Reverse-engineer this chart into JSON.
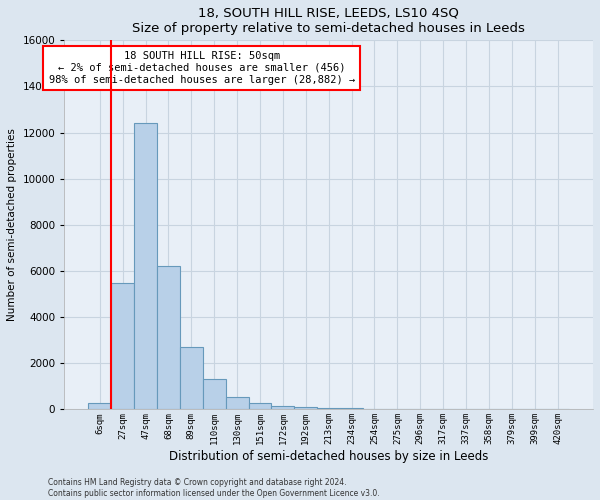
{
  "title": "18, SOUTH HILL RISE, LEEDS, LS10 4SQ",
  "subtitle": "Size of property relative to semi-detached houses in Leeds",
  "xlabel": "Distribution of semi-detached houses by size in Leeds",
  "ylabel": "Number of semi-detached properties",
  "bar_labels": [
    "6sqm",
    "27sqm",
    "47sqm",
    "68sqm",
    "89sqm",
    "110sqm",
    "130sqm",
    "151sqm",
    "172sqm",
    "192sqm",
    "213sqm",
    "234sqm",
    "254sqm",
    "275sqm",
    "296sqm",
    "317sqm",
    "337sqm",
    "358sqm",
    "379sqm",
    "399sqm",
    "420sqm"
  ],
  "bar_values": [
    300,
    5500,
    12400,
    6200,
    2700,
    1300,
    550,
    280,
    130,
    100,
    70,
    50,
    30,
    0,
    0,
    0,
    0,
    0,
    0,
    0,
    0
  ],
  "bar_color": "#b8d0e8",
  "bar_edge_color": "#6699bb",
  "vline_x": 0.5,
  "annotation_title": "18 SOUTH HILL RISE: 50sqm",
  "annotation_line1": "← 2% of semi-detached houses are smaller (456)",
  "annotation_line2": "98% of semi-detached houses are larger (28,882) →",
  "annotation_box_color": "white",
  "annotation_box_edge": "red",
  "vline_color": "red",
  "ylim": [
    0,
    16000
  ],
  "yticks": [
    0,
    2000,
    4000,
    6000,
    8000,
    10000,
    12000,
    14000,
    16000
  ],
  "footer1": "Contains HM Land Registry data © Crown copyright and database right 2024.",
  "footer2": "Contains public sector information licensed under the Open Government Licence v3.0.",
  "bg_color": "#dce6f0",
  "plot_bg_color": "#e8eff7",
  "grid_color": "#c8d4e0"
}
